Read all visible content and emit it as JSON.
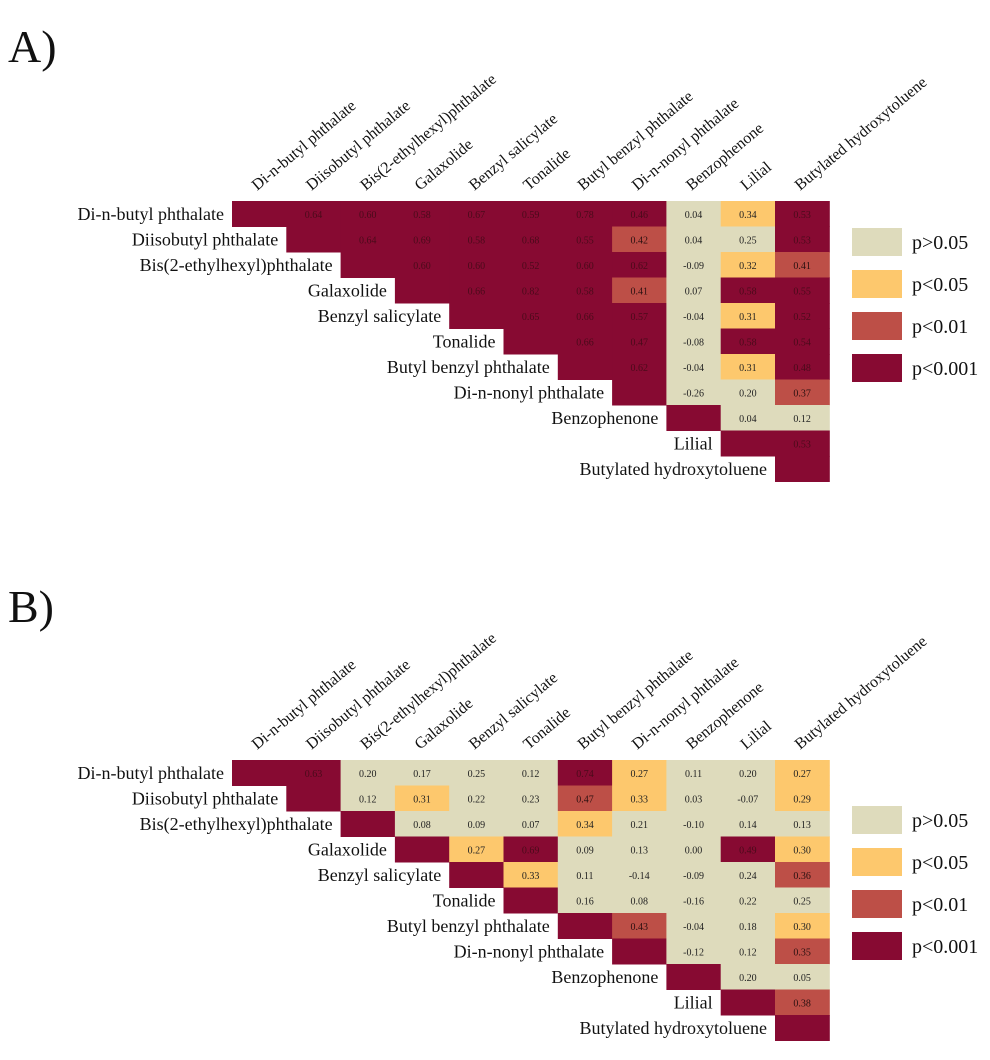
{
  "chart_data": [
    {
      "type": "heatmap",
      "panel_label": "A)",
      "labels": [
        "Di-n-butyl phthalate",
        "Diisobutyl phthalate",
        "Bis(2-ethylhexyl)phthalate",
        "Galaxolide",
        "Benzyl salicylate",
        "Tonalide",
        "Butyl benzyl phthalate",
        "Di-n-nonyl phthalate",
        "Benzophenone",
        "Lilial",
        "Butylated hydroxytoluene"
      ],
      "values": [
        [
          null,
          0.64,
          0.6,
          0.58,
          0.67,
          0.59,
          0.78,
          0.46,
          0.04,
          0.34,
          0.53
        ],
        [
          null,
          null,
          0.64,
          0.69,
          0.58,
          0.68,
          0.55,
          0.42,
          0.04,
          0.25,
          0.53
        ],
        [
          null,
          null,
          null,
          0.6,
          0.6,
          0.52,
          0.6,
          0.62,
          -0.09,
          0.32,
          0.41
        ],
        [
          null,
          null,
          null,
          null,
          0.66,
          0.82,
          0.58,
          0.41,
          0.07,
          0.58,
          0.55
        ],
        [
          null,
          null,
          null,
          null,
          null,
          0.65,
          0.66,
          0.57,
          -0.04,
          0.31,
          0.52
        ],
        [
          null,
          null,
          null,
          null,
          null,
          null,
          0.66,
          0.47,
          -0.08,
          0.58,
          0.54
        ],
        [
          null,
          null,
          null,
          null,
          null,
          null,
          null,
          0.62,
          -0.04,
          0.31,
          0.48
        ],
        [
          null,
          null,
          null,
          null,
          null,
          null,
          null,
          null,
          -0.26,
          0.2,
          0.37
        ],
        [
          null,
          null,
          null,
          null,
          null,
          null,
          null,
          null,
          null,
          0.04,
          0.12
        ],
        [
          null,
          null,
          null,
          null,
          null,
          null,
          null,
          null,
          null,
          null,
          0.53
        ],
        [
          null,
          null,
          null,
          null,
          null,
          null,
          null,
          null,
          null,
          null,
          null
        ]
      ],
      "significance": [
        [
          3,
          3,
          3,
          3,
          3,
          3,
          3,
          3,
          0,
          1,
          3
        ],
        [
          null,
          3,
          3,
          3,
          3,
          3,
          3,
          2,
          0,
          0,
          3
        ],
        [
          null,
          null,
          3,
          3,
          3,
          3,
          3,
          3,
          0,
          1,
          2
        ],
        [
          null,
          null,
          null,
          3,
          3,
          3,
          3,
          2,
          0,
          3,
          3
        ],
        [
          null,
          null,
          null,
          null,
          3,
          3,
          3,
          3,
          0,
          1,
          3
        ],
        [
          null,
          null,
          null,
          null,
          null,
          3,
          3,
          3,
          0,
          3,
          3
        ],
        [
          null,
          null,
          null,
          null,
          null,
          null,
          3,
          3,
          0,
          1,
          3
        ],
        [
          null,
          null,
          null,
          null,
          null,
          null,
          null,
          3,
          0,
          0,
          2
        ],
        [
          null,
          null,
          null,
          null,
          null,
          null,
          null,
          null,
          3,
          0,
          0
        ],
        [
          null,
          null,
          null,
          null,
          null,
          null,
          null,
          null,
          null,
          3,
          3
        ],
        [
          null,
          null,
          null,
          null,
          null,
          null,
          null,
          null,
          null,
          null,
          3
        ]
      ]
    },
    {
      "type": "heatmap",
      "panel_label": "B)",
      "labels": [
        "Di-n-butyl phthalate",
        "Diisobutyl phthalate",
        "Bis(2-ethylhexyl)phthalate",
        "Galaxolide",
        "Benzyl salicylate",
        "Tonalide",
        "Butyl benzyl phthalate",
        "Di-n-nonyl phthalate",
        "Benzophenone",
        "Lilial",
        "Butylated hydroxytoluene"
      ],
      "values": [
        [
          null,
          0.63,
          0.2,
          0.17,
          0.25,
          0.12,
          0.74,
          0.27,
          0.11,
          0.2,
          0.27
        ],
        [
          null,
          null,
          0.12,
          0.31,
          0.22,
          0.23,
          0.47,
          0.33,
          0.03,
          -0.07,
          0.29
        ],
        [
          null,
          null,
          null,
          0.08,
          0.09,
          0.07,
          0.34,
          0.21,
          -0.1,
          0.14,
          0.13
        ],
        [
          null,
          null,
          null,
          null,
          0.27,
          0.69,
          0.09,
          0.13,
          0.0,
          0.49,
          0.3
        ],
        [
          null,
          null,
          null,
          null,
          null,
          0.33,
          0.11,
          -0.14,
          -0.09,
          0.24,
          0.36
        ],
        [
          null,
          null,
          null,
          null,
          null,
          null,
          0.16,
          0.08,
          -0.16,
          0.22,
          0.25
        ],
        [
          null,
          null,
          null,
          null,
          null,
          null,
          null,
          0.43,
          -0.04,
          0.18,
          0.3
        ],
        [
          null,
          null,
          null,
          null,
          null,
          null,
          null,
          null,
          -0.12,
          0.12,
          0.35
        ],
        [
          null,
          null,
          null,
          null,
          null,
          null,
          null,
          null,
          null,
          0.2,
          0.05
        ],
        [
          null,
          null,
          null,
          null,
          null,
          null,
          null,
          null,
          null,
          null,
          0.38
        ],
        [
          null,
          null,
          null,
          null,
          null,
          null,
          null,
          null,
          null,
          null,
          null
        ]
      ],
      "significance": [
        [
          3,
          3,
          0,
          0,
          0,
          0,
          3,
          1,
          0,
          0,
          1
        ],
        [
          null,
          3,
          0,
          1,
          0,
          0,
          2,
          1,
          0,
          0,
          1
        ],
        [
          null,
          null,
          3,
          0,
          0,
          0,
          1,
          0,
          0,
          0,
          0
        ],
        [
          null,
          null,
          null,
          3,
          1,
          3,
          0,
          0,
          0,
          3,
          1
        ],
        [
          null,
          null,
          null,
          null,
          3,
          1,
          0,
          0,
          0,
          0,
          2
        ],
        [
          null,
          null,
          null,
          null,
          null,
          3,
          0,
          0,
          0,
          0,
          0
        ],
        [
          null,
          null,
          null,
          null,
          null,
          null,
          3,
          2,
          0,
          0,
          1
        ],
        [
          null,
          null,
          null,
          null,
          null,
          null,
          null,
          3,
          0,
          0,
          2
        ],
        [
          null,
          null,
          null,
          null,
          null,
          null,
          null,
          null,
          3,
          0,
          0
        ],
        [
          null,
          null,
          null,
          null,
          null,
          null,
          null,
          null,
          null,
          3,
          2
        ],
        [
          null,
          null,
          null,
          null,
          null,
          null,
          null,
          null,
          null,
          null,
          3
        ]
      ]
    }
  ],
  "legend": [
    {
      "label": "p>0.05",
      "color": "#dedbbc"
    },
    {
      "label": "p<0.05",
      "color": "#fdc86d"
    },
    {
      "label": "p<0.01",
      "color": "#bd4f47"
    },
    {
      "label": "p<0.001",
      "color": "#870a32"
    }
  ]
}
